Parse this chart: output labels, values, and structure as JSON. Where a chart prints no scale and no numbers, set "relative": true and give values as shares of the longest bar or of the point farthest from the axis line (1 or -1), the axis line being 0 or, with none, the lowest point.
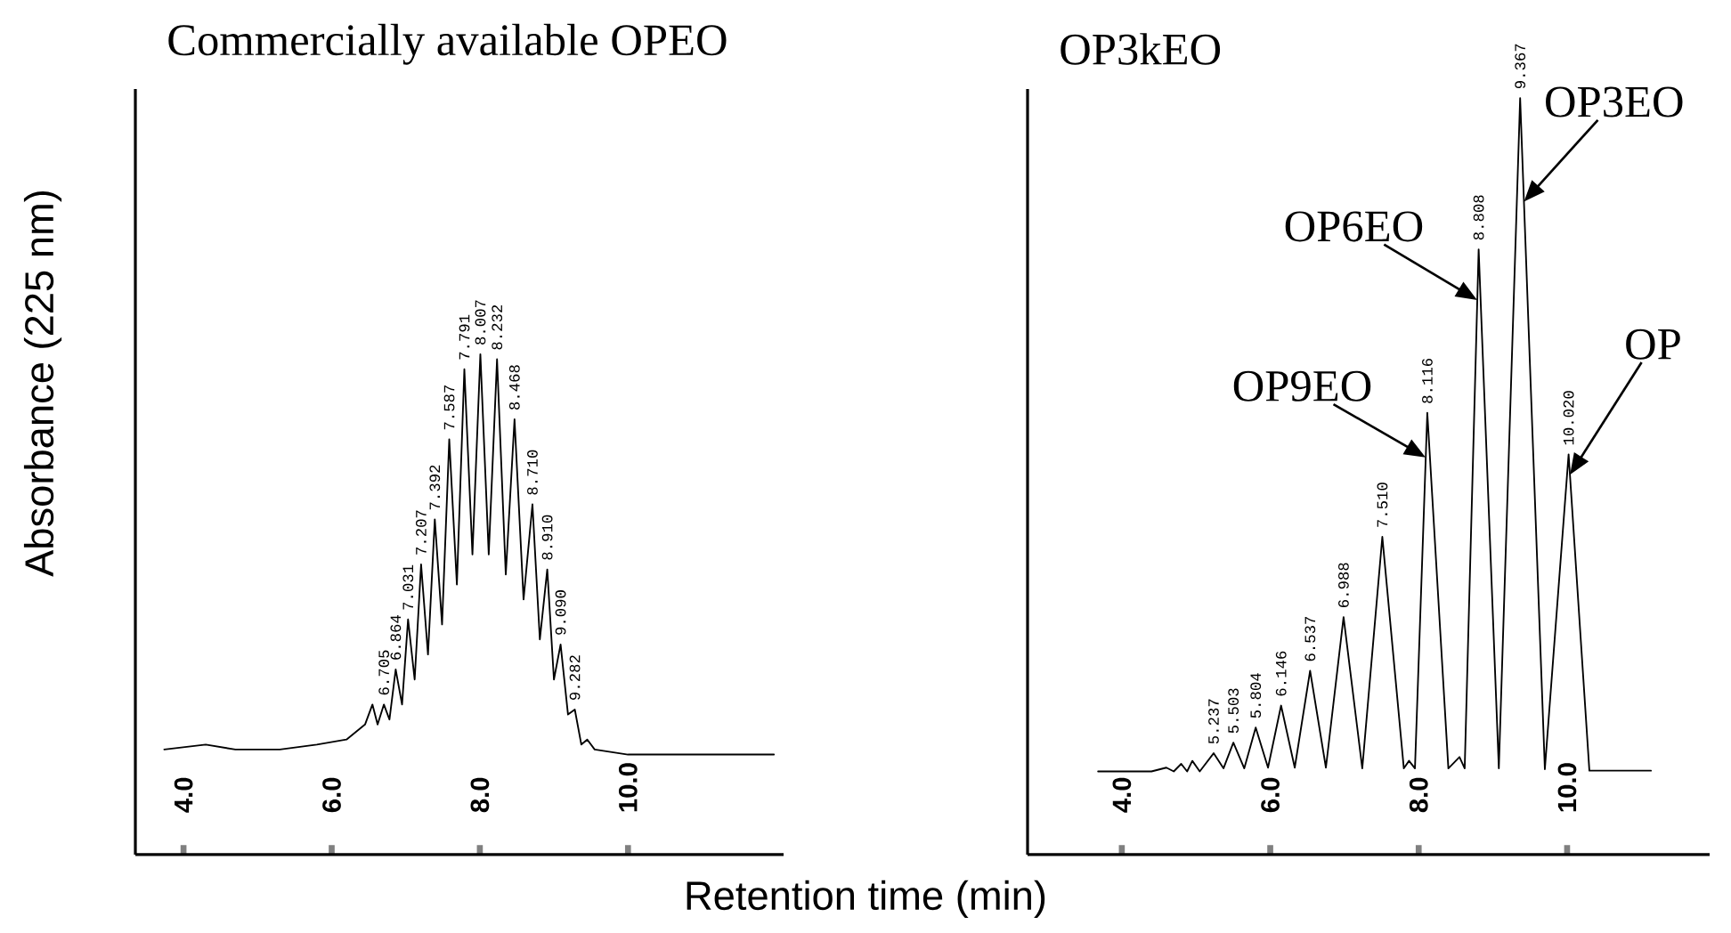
{
  "chart_data": [
    {
      "type": "line",
      "title": "Commercially available OPEO",
      "ylabel": "Absorbance (225 nm)",
      "xlabel": "Retention time (min)",
      "relative": true,
      "xlim": [
        3.35,
        12.1
      ],
      "xticks": [
        {
          "value": 4,
          "label": "4.0"
        },
        {
          "value": 6,
          "label": "6.0"
        },
        {
          "value": 8,
          "label": "8.0"
        },
        {
          "value": 10,
          "label": "10.0"
        }
      ],
      "series": [
        {
          "color": "#000000",
          "x": [
            3.74,
            4.3,
            4.7,
            5.3,
            5.8,
            6.2,
            6.45,
            6.55,
            6.62,
            6.705,
            6.78,
            6.864,
            6.95,
            7.031,
            7.12,
            7.207,
            7.3,
            7.392,
            7.49,
            7.587,
            7.69,
            7.791,
            7.9,
            8.007,
            8.12,
            8.232,
            8.35,
            8.468,
            8.59,
            8.71,
            8.81,
            8.91,
            9.0,
            9.09,
            9.19,
            9.282,
            9.37,
            9.45,
            9.55,
            10.0,
            10.5,
            11.0,
            11.5,
            11.97
          ],
          "values": [
            0.21,
            0.22,
            0.21,
            0.21,
            0.22,
            0.23,
            0.26,
            0.3,
            0.26,
            0.3,
            0.27,
            0.37,
            0.3,
            0.47,
            0.35,
            0.58,
            0.4,
            0.67,
            0.46,
            0.83,
            0.54,
            0.97,
            0.6,
            1.0,
            0.6,
            0.99,
            0.56,
            0.87,
            0.51,
            0.7,
            0.43,
            0.57,
            0.35,
            0.42,
            0.28,
            0.29,
            0.22,
            0.23,
            0.21,
            0.2,
            0.2,
            0.2,
            0.2,
            0.2
          ]
        }
      ],
      "annotations": [
        {
          "text": "6.705",
          "x": 6.705,
          "y": 0.3
        },
        {
          "text": "6.864",
          "x": 6.864,
          "y": 0.37
        },
        {
          "text": "7.031",
          "x": 7.031,
          "y": 0.47
        },
        {
          "text": "7.207",
          "x": 7.207,
          "y": 0.58
        },
        {
          "text": "7.392",
          "x": 7.392,
          "y": 0.67
        },
        {
          "text": "7.587",
          "x": 7.587,
          "y": 0.83
        },
        {
          "text": "7.791",
          "x": 7.791,
          "y": 0.97
        },
        {
          "text": "8.007",
          "x": 8.007,
          "y": 1.0
        },
        {
          "text": "8.232",
          "x": 8.232,
          "y": 0.99
        },
        {
          "text": "8.468",
          "x": 8.468,
          "y": 0.87
        },
        {
          "text": "8.710",
          "x": 8.71,
          "y": 0.7
        },
        {
          "text": "8.910",
          "x": 8.91,
          "y": 0.57
        },
        {
          "text": "9.090",
          "x": 9.09,
          "y": 0.42
        },
        {
          "text": "9.282",
          "x": 9.282,
          "y": 0.29
        }
      ]
    },
    {
      "type": "line",
      "title": "OP3kEO",
      "relative": true,
      "xlim": [
        2.73,
        11.92
      ],
      "xticks": [
        {
          "value": 4,
          "label": "4.0"
        },
        {
          "value": 6,
          "label": "6.0"
        },
        {
          "value": 8,
          "label": "8.0"
        },
        {
          "value": 10,
          "label": "10.0"
        }
      ],
      "series": [
        {
          "color": "#000000",
          "x": [
            3.68,
            4.4,
            4.6,
            4.7,
            4.8,
            4.88,
            4.95,
            5.05,
            5.237,
            5.37,
            5.503,
            5.65,
            5.804,
            5.97,
            6.146,
            6.33,
            6.537,
            6.75,
            6.988,
            7.24,
            7.51,
            7.8,
            7.87,
            7.95,
            8.116,
            8.4,
            8.55,
            8.62,
            8.808,
            9.08,
            9.367,
            9.7,
            10.02,
            10.3,
            11.13
          ],
          "values": [
            0.11,
            0.11,
            0.115,
            0.11,
            0.12,
            0.11,
            0.124,
            0.11,
            0.134,
            0.114,
            0.148,
            0.114,
            0.168,
            0.115,
            0.197,
            0.115,
            0.243,
            0.115,
            0.314,
            0.114,
            0.42,
            0.114,
            0.124,
            0.114,
            0.584,
            0.114,
            0.129,
            0.114,
            0.8,
            0.114,
            1.0,
            0.113,
            0.529,
            0.111,
            0.111
          ]
        }
      ],
      "annotations": [
        {
          "text": "5.237",
          "x": 5.237,
          "y": 0.134
        },
        {
          "text": "5.503",
          "x": 5.503,
          "y": 0.148
        },
        {
          "text": "5.804",
          "x": 5.804,
          "y": 0.168
        },
        {
          "text": "6.146",
          "x": 6.146,
          "y": 0.197
        },
        {
          "text": "6.537",
          "x": 6.537,
          "y": 0.243
        },
        {
          "text": "6.988",
          "x": 6.988,
          "y": 0.314
        },
        {
          "text": "7.510",
          "x": 7.51,
          "y": 0.42
        },
        {
          "text": "8.116",
          "x": 8.116,
          "y": 0.584
        },
        {
          "text": "8.808",
          "x": 8.808,
          "y": 0.8
        },
        {
          "text": "9.367",
          "x": 9.367,
          "y": 1.0
        },
        {
          "text": "10.020",
          "x": 10.02,
          "y": 0.529
        },
        {
          "text": "OP9EO",
          "x": 8.095,
          "y": 0.525
        },
        {
          "text": "OP6EO",
          "x": 8.79,
          "y": 0.733
        },
        {
          "text": "OP3EO",
          "x": 9.418,
          "y": 0.863
        },
        {
          "text": "OP",
          "x": 10.038,
          "y": 0.502
        }
      ]
    }
  ]
}
